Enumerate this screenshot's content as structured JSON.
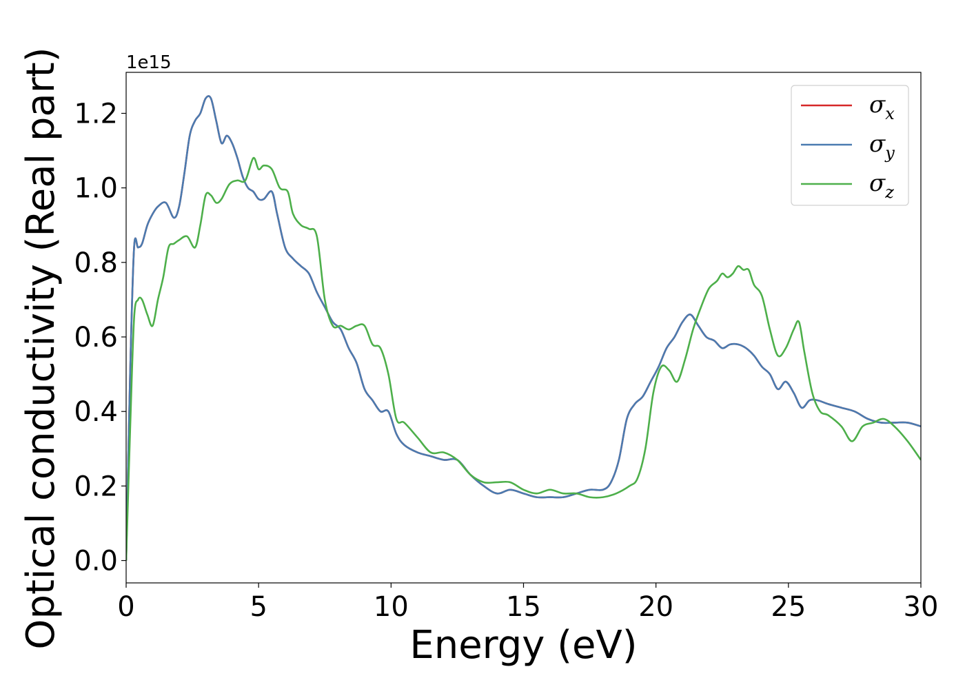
{
  "chart_data": {
    "type": "line",
    "xlabel": "Energy (eV)",
    "ylabel": "Optical conductivity (Real part)",
    "y_offset_label": "1e15",
    "xlim": [
      0,
      30
    ],
    "ylim": [
      -0.06,
      1.31
    ],
    "xticks": [
      0,
      5,
      10,
      15,
      20,
      25,
      30
    ],
    "yticks": [
      0.0,
      0.2,
      0.4,
      0.6,
      0.8,
      1.0,
      1.2
    ],
    "xtick_labels": [
      "0",
      "5",
      "10",
      "15",
      "20",
      "25",
      "30"
    ],
    "ytick_labels": [
      "0.0",
      "0.2",
      "0.4",
      "0.6",
      "0.8",
      "1.0",
      "1.2"
    ],
    "grid": false,
    "legend_position": "top-right",
    "series": [
      {
        "name": "σx",
        "symbol": "σ",
        "subscript": "x",
        "color": "#d62728",
        "x": [
          0,
          0.15,
          0.3,
          0.45,
          0.6,
          0.8,
          1.0,
          1.2,
          1.5,
          1.8,
          2.0,
          2.2,
          2.4,
          2.6,
          2.8,
          3.0,
          3.2,
          3.4,
          3.6,
          3.8,
          4.0,
          4.2,
          4.4,
          4.6,
          4.8,
          5.0,
          5.2,
          5.5,
          5.7,
          6.0,
          6.3,
          6.6,
          6.9,
          7.2,
          7.5,
          7.8,
          8.1,
          8.4,
          8.7,
          9.0,
          9.3,
          9.6,
          9.9,
          10.2,
          10.5,
          11.0,
          11.5,
          12.0,
          12.5,
          13.0,
          13.5,
          14.0,
          14.5,
          15.0,
          15.5,
          16.0,
          16.5,
          17.0,
          17.5,
          18.0,
          18.3,
          18.6,
          18.9,
          19.2,
          19.5,
          19.8,
          20.1,
          20.4,
          20.7,
          21.0,
          21.3,
          21.6,
          21.9,
          22.2,
          22.5,
          22.8,
          23.1,
          23.4,
          23.7,
          24.0,
          24.3,
          24.6,
          24.9,
          25.2,
          25.5,
          25.8,
          26.1,
          26.5,
          27.0,
          27.5,
          28.0,
          28.5,
          29.0,
          29.5,
          30.0
        ],
        "y": [
          0.0,
          0.5,
          0.84,
          0.84,
          0.85,
          0.9,
          0.93,
          0.95,
          0.96,
          0.92,
          0.95,
          1.04,
          1.14,
          1.18,
          1.2,
          1.24,
          1.24,
          1.18,
          1.12,
          1.14,
          1.12,
          1.08,
          1.03,
          1.0,
          0.99,
          0.97,
          0.97,
          0.99,
          0.93,
          0.84,
          0.81,
          0.79,
          0.77,
          0.72,
          0.68,
          0.64,
          0.62,
          0.57,
          0.53,
          0.46,
          0.43,
          0.4,
          0.4,
          0.34,
          0.31,
          0.29,
          0.28,
          0.27,
          0.27,
          0.23,
          0.2,
          0.18,
          0.19,
          0.18,
          0.17,
          0.17,
          0.17,
          0.18,
          0.19,
          0.19,
          0.21,
          0.27,
          0.38,
          0.42,
          0.44,
          0.48,
          0.52,
          0.57,
          0.6,
          0.64,
          0.66,
          0.63,
          0.6,
          0.59,
          0.57,
          0.58,
          0.58,
          0.57,
          0.55,
          0.52,
          0.5,
          0.46,
          0.48,
          0.45,
          0.41,
          0.43,
          0.43,
          0.42,
          0.41,
          0.4,
          0.38,
          0.37,
          0.37,
          0.37,
          0.36
        ]
      },
      {
        "name": "σy",
        "symbol": "σ",
        "subscript": "y",
        "color": "#4a7bb0",
        "x": [
          0,
          0.15,
          0.3,
          0.45,
          0.6,
          0.8,
          1.0,
          1.2,
          1.5,
          1.8,
          2.0,
          2.2,
          2.4,
          2.6,
          2.8,
          3.0,
          3.2,
          3.4,
          3.6,
          3.8,
          4.0,
          4.2,
          4.4,
          4.6,
          4.8,
          5.0,
          5.2,
          5.5,
          5.7,
          6.0,
          6.3,
          6.6,
          6.9,
          7.2,
          7.5,
          7.8,
          8.1,
          8.4,
          8.7,
          9.0,
          9.3,
          9.6,
          9.9,
          10.2,
          10.5,
          11.0,
          11.5,
          12.0,
          12.5,
          13.0,
          13.5,
          14.0,
          14.5,
          15.0,
          15.5,
          16.0,
          16.5,
          17.0,
          17.5,
          18.0,
          18.3,
          18.6,
          18.9,
          19.2,
          19.5,
          19.8,
          20.1,
          20.4,
          20.7,
          21.0,
          21.3,
          21.6,
          21.9,
          22.2,
          22.5,
          22.8,
          23.1,
          23.4,
          23.7,
          24.0,
          24.3,
          24.6,
          24.9,
          25.2,
          25.5,
          25.8,
          26.1,
          26.5,
          27.0,
          27.5,
          28.0,
          28.5,
          29.0,
          29.5,
          30.0
        ],
        "y": [
          0.0,
          0.5,
          0.84,
          0.84,
          0.85,
          0.9,
          0.93,
          0.95,
          0.96,
          0.92,
          0.95,
          1.04,
          1.14,
          1.18,
          1.2,
          1.24,
          1.24,
          1.18,
          1.12,
          1.14,
          1.12,
          1.08,
          1.03,
          1.0,
          0.99,
          0.97,
          0.97,
          0.99,
          0.93,
          0.84,
          0.81,
          0.79,
          0.77,
          0.72,
          0.68,
          0.64,
          0.62,
          0.57,
          0.53,
          0.46,
          0.43,
          0.4,
          0.4,
          0.34,
          0.31,
          0.29,
          0.28,
          0.27,
          0.27,
          0.23,
          0.2,
          0.18,
          0.19,
          0.18,
          0.17,
          0.17,
          0.17,
          0.18,
          0.19,
          0.19,
          0.21,
          0.27,
          0.38,
          0.42,
          0.44,
          0.48,
          0.52,
          0.57,
          0.6,
          0.64,
          0.66,
          0.63,
          0.6,
          0.59,
          0.57,
          0.58,
          0.58,
          0.57,
          0.55,
          0.52,
          0.5,
          0.46,
          0.48,
          0.45,
          0.41,
          0.43,
          0.43,
          0.42,
          0.41,
          0.4,
          0.38,
          0.37,
          0.37,
          0.37,
          0.36
        ]
      },
      {
        "name": "σz",
        "symbol": "σ",
        "subscript": "z",
        "color": "#4daf4a",
        "x": [
          0,
          0.15,
          0.3,
          0.45,
          0.6,
          0.8,
          1.0,
          1.2,
          1.4,
          1.6,
          1.8,
          2.0,
          2.3,
          2.6,
          2.8,
          3.0,
          3.2,
          3.4,
          3.6,
          3.9,
          4.2,
          4.5,
          4.8,
          5.0,
          5.2,
          5.5,
          5.8,
          6.1,
          6.3,
          6.6,
          6.9,
          7.2,
          7.5,
          7.8,
          8.1,
          8.4,
          8.7,
          9.0,
          9.3,
          9.6,
          9.9,
          10.2,
          10.5,
          11.0,
          11.5,
          12.0,
          12.5,
          13.0,
          13.5,
          14.0,
          14.5,
          15.0,
          15.5,
          16.0,
          16.5,
          17.0,
          17.5,
          18.0,
          18.5,
          19.0,
          19.3,
          19.6,
          19.9,
          20.2,
          20.5,
          20.8,
          21.1,
          21.4,
          21.7,
          22.0,
          22.3,
          22.5,
          22.7,
          22.9,
          23.1,
          23.3,
          23.5,
          23.7,
          24.0,
          24.3,
          24.6,
          24.9,
          25.2,
          25.4,
          25.6,
          25.9,
          26.2,
          26.5,
          27.0,
          27.4,
          27.8,
          28.2,
          28.6,
          29.0,
          29.5,
          30.0
        ],
        "y": [
          0.0,
          0.35,
          0.65,
          0.7,
          0.7,
          0.66,
          0.63,
          0.7,
          0.76,
          0.84,
          0.85,
          0.86,
          0.87,
          0.84,
          0.9,
          0.98,
          0.98,
          0.96,
          0.97,
          1.01,
          1.02,
          1.02,
          1.08,
          1.05,
          1.06,
          1.05,
          1.0,
          0.99,
          0.93,
          0.9,
          0.89,
          0.87,
          0.7,
          0.63,
          0.63,
          0.62,
          0.63,
          0.63,
          0.58,
          0.57,
          0.5,
          0.38,
          0.37,
          0.33,
          0.29,
          0.29,
          0.27,
          0.23,
          0.21,
          0.21,
          0.21,
          0.19,
          0.18,
          0.19,
          0.18,
          0.18,
          0.17,
          0.17,
          0.18,
          0.2,
          0.22,
          0.3,
          0.45,
          0.52,
          0.51,
          0.48,
          0.54,
          0.62,
          0.68,
          0.73,
          0.75,
          0.77,
          0.76,
          0.77,
          0.79,
          0.78,
          0.78,
          0.74,
          0.71,
          0.62,
          0.55,
          0.57,
          0.62,
          0.64,
          0.56,
          0.45,
          0.4,
          0.39,
          0.36,
          0.32,
          0.36,
          0.37,
          0.38,
          0.36,
          0.32,
          0.27
        ]
      }
    ]
  }
}
